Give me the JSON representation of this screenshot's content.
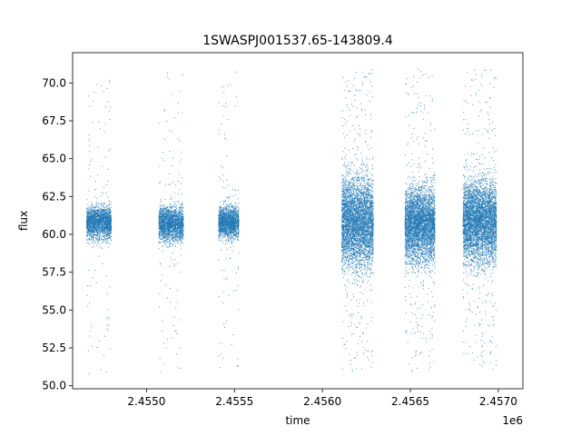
{
  "chart_data": {
    "type": "scatter",
    "title": "1SWASPJ001537.65-143809.4",
    "xlabel": "time",
    "ylabel": "flux",
    "x_offset_label": "1e6",
    "xlim": [
      2454580,
      2457140
    ],
    "ylim": [
      49.8,
      72.0
    ],
    "x_ticks": [
      2455000,
      2455500,
      2456000,
      2456500,
      2457000
    ],
    "x_tick_labels": [
      "2.4550",
      "2.4555",
      "2.4560",
      "2.4565",
      "2.4570"
    ],
    "y_ticks": [
      50.0,
      52.5,
      55.0,
      57.5,
      60.0,
      62.5,
      65.0,
      67.5,
      70.0
    ],
    "y_tick_labels": [
      "50.0",
      "52.5",
      "55.0",
      "57.5",
      "60.0",
      "62.5",
      "65.0",
      "67.5",
      "70.0"
    ],
    "grid": false,
    "marker_color": "#1f77b4",
    "series": [
      {
        "x": [
          2454660,
          2454670,
          2454690,
          2454700,
          2454720,
          2454730,
          2454740,
          2454750,
          2454760,
          2454780,
          2454790,
          2455080,
          2455090,
          2455100,
          2455110,
          2455120,
          2455140,
          2455150,
          2455160,
          2455170,
          2455180,
          2455200,
          2455420,
          2455430,
          2455440,
          2455450,
          2455460,
          2455470,
          2455480,
          2455490,
          2455500,
          2455510,
          2455520,
          2456120,
          2456140,
          2456160,
          2456180,
          2456200,
          2456220,
          2456240,
          2456260,
          2456280,
          2456490,
          2456510,
          2456530,
          2456550,
          2456570,
          2456590,
          2456610,
          2456630,
          2456820,
          2456840,
          2456860,
          2456880,
          2456900,
          2456920,
          2456940,
          2456960,
          2456980
        ],
        "y": [
          60.6,
          61.2,
          59.8,
          60.9,
          61.4,
          60.3,
          60.8,
          61.1,
          60.2,
          60.7,
          60.9,
          60.5,
          61.3,
          60.1,
          60.8,
          61.6,
          59.7,
          60.9,
          61.2,
          60.4,
          60.7,
          60.8,
          60.3,
          61.0,
          60.6,
          61.5,
          59.9,
          60.8,
          60.5,
          61.1,
          60.2,
          60.7,
          60.6,
          60.9,
          59.2,
          62.4,
          61.0,
          58.7,
          62.8,
          60.3,
          61.5,
          60.0,
          60.6,
          62.1,
          59.0,
          61.3,
          60.1,
          62.6,
          59.8,
          60.9,
          61.0,
          58.9,
          62.7,
          60.4,
          61.8,
          59.5,
          62.2,
          60.6,
          61.1
        ]
      }
    ],
    "segments": [
      {
        "x_range": [
          2454660,
          2454800
        ],
        "center": 60.8,
        "spread": 0.75,
        "tail_low": 50.8,
        "tail_high": 70.2
      },
      {
        "x_range": [
          2455070,
          2455210
        ],
        "center": 60.7,
        "spread": 0.8,
        "tail_low": 50.8,
        "tail_high": 71.0
      },
      {
        "x_range": [
          2455410,
          2455525
        ],
        "center": 60.8,
        "spread": 0.75,
        "tail_low": 50.9,
        "tail_high": 70.9
      },
      {
        "x_range": [
          2456110,
          2456290
        ],
        "center": 60.8,
        "spread": 2.1,
        "tail_low": 50.8,
        "tail_high": 70.9
      },
      {
        "x_range": [
          2456470,
          2456640
        ],
        "center": 60.7,
        "spread": 1.7,
        "tail_low": 50.9,
        "tail_high": 71.0
      },
      {
        "x_range": [
          2456800,
          2456990
        ],
        "center": 60.9,
        "spread": 1.9,
        "tail_low": 50.9,
        "tail_high": 71.0
      }
    ]
  }
}
